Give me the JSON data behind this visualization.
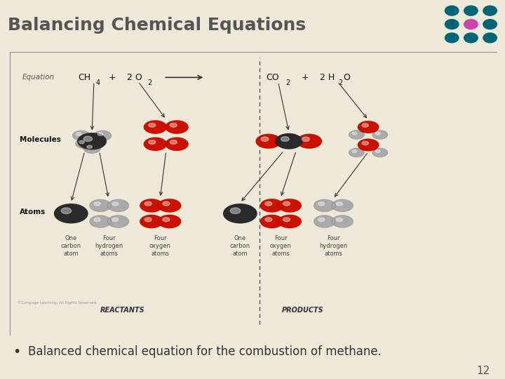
{
  "title": "Balancing Chemical Equations",
  "title_color": "#555555",
  "title_bg": "#d0d0d0",
  "content_bg": "#f0ead6",
  "slide_bg": "#ede8d8",
  "bullet_text": "Balanced chemical equation for the combustion of methane.",
  "page_number": "12",
  "equation_label": "Equation",
  "molecules_label": "Molecules",
  "atoms_label": "Atoms",
  "reactants_label": "REACTANTS",
  "products_label": "PRODUCTS",
  "color_carbon": "#2a2a2a",
  "color_hydrogen": "#aaaaaa",
  "color_oxygen": "#cc1100",
  "color_arrow": "#333333",
  "copyright": "©Cengage Learning, All Rights Reserved",
  "teal_bg": "#008899",
  "teal_dot": "#006677",
  "magenta_dot": "#cc44aa"
}
